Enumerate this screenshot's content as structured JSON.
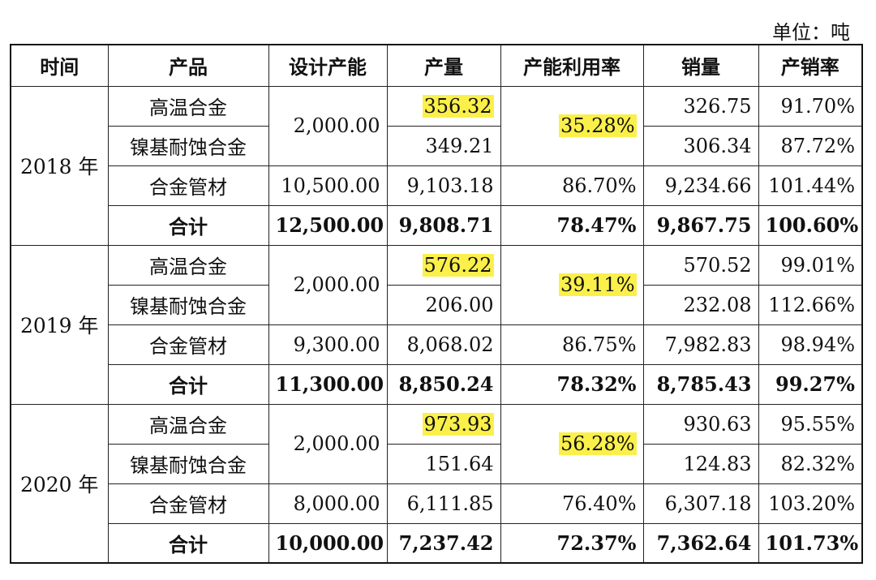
{
  "unit_label": "单位：吨",
  "headers": [
    "时间",
    "产品",
    "设计产能",
    "产量",
    "产能利用率",
    "销量",
    "产销率"
  ],
  "years": [
    {
      "year": "2018 年",
      "shared_capacity": "2,000.00",
      "shared_utilization": "35.28%",
      "rows": [
        {
          "product": "高温合金",
          "output": "356.32",
          "sales": "326.75",
          "rate": "91.70%"
        },
        {
          "product": "镍基耐蚀合金",
          "output": "349.21",
          "sales": "306.34",
          "rate": "87.72%"
        },
        {
          "product": "合金管材",
          "capacity": "10,500.00",
          "output": "9,103.18",
          "utilization": "86.70%",
          "sales": "9,234.66",
          "rate": "101.44%"
        },
        {
          "product": "合计",
          "capacity": "12,500.00",
          "output": "9,808.71",
          "utilization": "78.47%",
          "sales": "9,867.75",
          "rate": "100.60%"
        }
      ]
    },
    {
      "year": "2019 年",
      "shared_capacity": "2,000.00",
      "shared_utilization": "39.11%",
      "rows": [
        {
          "product": "高温合金",
          "output": "576.22",
          "sales": "570.52",
          "rate": "99.01%"
        },
        {
          "product": "镍基耐蚀合金",
          "output": "206.00",
          "sales": "232.08",
          "rate": "112.66%"
        },
        {
          "product": "合金管材",
          "capacity": "9,300.00",
          "output": "8,068.02",
          "utilization": "86.75%",
          "sales": "7,982.83",
          "rate": "98.94%"
        },
        {
          "product": "合计",
          "capacity": "11,300.00",
          "output": "8,850.24",
          "utilization": "78.32%",
          "sales": "8,785.43",
          "rate": "99.27%"
        }
      ]
    },
    {
      "year": "2020 年",
      "shared_capacity": "2,000.00",
      "shared_utilization": "56.28%",
      "rows": [
        {
          "product": "高温合金",
          "output": "973.93",
          "sales": "930.63",
          "rate": "95.55%"
        },
        {
          "product": "镍基耐蚀合金",
          "output": "151.64",
          "sales": "124.83",
          "rate": "82.32%"
        },
        {
          "product": "合金管材",
          "capacity": "8,000.00",
          "output": "6,111.85",
          "utilization": "76.40%",
          "sales": "6,307.18",
          "rate": "103.20%"
        },
        {
          "product": "合计",
          "capacity": "10,000.00",
          "output": "7,237.42",
          "utilization": "72.37%",
          "sales": "7,362.64",
          "rate": "101.73%"
        }
      ]
    }
  ],
  "colors": {
    "highlight": "#fbf04a",
    "border": "#222222"
  }
}
